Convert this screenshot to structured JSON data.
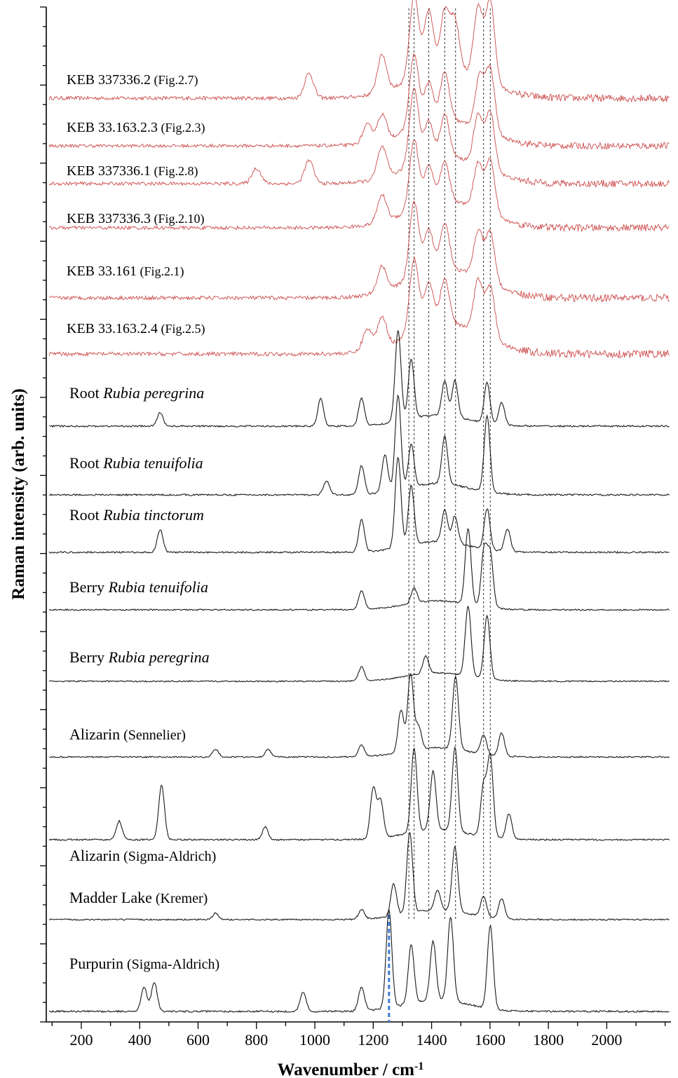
{
  "chart_data": {
    "type": "line",
    "title": "",
    "xlabel": "Wavenumber / cm",
    "xlabel_superscript": "-1",
    "ylabel": "Raman intensity (arb. units)",
    "xlim": [
      80,
      2220
    ],
    "xticks": [
      200,
      400,
      600,
      800,
      1000,
      1200,
      1400,
      1600,
      1800,
      2000
    ],
    "ytick_labels": "none",
    "grid": false,
    "legend": "none (each spectrum labelled at left)",
    "reference_lines_cm": [
      1322,
      1340,
      1390,
      1445,
      1482,
      1578,
      1601
    ],
    "highlight_line_cm": 1254,
    "colors": {
      "sample": "#cc4b4b",
      "reference": "#1a1a1a",
      "highlight": "#3a7bd5",
      "guide": "#333333"
    },
    "series": [
      {
        "name": "KEB 337336.2",
        "note": "(Fig.2.7)",
        "italic": "",
        "group": "sample",
        "peaks_cm": [
          [
            1340,
            1.0
          ],
          [
            1390,
            0.75
          ],
          [
            1445,
            0.7
          ],
          [
            1480,
            0.6
          ],
          [
            1560,
            0.85
          ],
          [
            1601,
            1.0
          ],
          [
            1230,
            0.45
          ],
          [
            980,
            0.3
          ]
        ]
      },
      {
        "name": "KEB 33.163.2.3",
        "note": "(Fig.2.3)",
        "italic": "",
        "group": "sample",
        "peaks_cm": [
          [
            1340,
            1.0
          ],
          [
            1390,
            0.55
          ],
          [
            1445,
            0.65
          ],
          [
            1565,
            0.7
          ],
          [
            1601,
            0.85
          ],
          [
            1230,
            0.35
          ],
          [
            1180,
            0.25
          ]
        ]
      },
      {
        "name": "KEB 337336.1",
        "note": "(Fig.2.8)",
        "italic": "",
        "group": "sample",
        "peaks_cm": [
          [
            1340,
            1.0
          ],
          [
            1390,
            0.5
          ],
          [
            1445,
            0.55
          ],
          [
            1560,
            0.65
          ],
          [
            1601,
            0.75
          ],
          [
            1230,
            0.4
          ],
          [
            980,
            0.3
          ],
          [
            800,
            0.2
          ]
        ]
      },
      {
        "name": "KEB 337336.3",
        "note": "(Fig.2.10)",
        "italic": "",
        "group": "sample",
        "peaks_cm": [
          [
            1340,
            0.9
          ],
          [
            1390,
            0.5
          ],
          [
            1445,
            0.5
          ],
          [
            1560,
            0.6
          ],
          [
            1601,
            0.7
          ],
          [
            1230,
            0.35
          ]
        ]
      },
      {
        "name": "KEB 33.161",
        "note": "(Fig.2.1)",
        "italic": "",
        "group": "sample",
        "peaks_cm": [
          [
            1340,
            0.9
          ],
          [
            1390,
            0.5
          ],
          [
            1445,
            0.55
          ],
          [
            1560,
            0.55
          ],
          [
            1601,
            0.6
          ],
          [
            1230,
            0.3
          ]
        ]
      },
      {
        "name": "KEB 33.163.2.4",
        "note": "(Fig.2.5)",
        "italic": "",
        "group": "sample",
        "peaks_cm": [
          [
            1340,
            0.85
          ],
          [
            1390,
            0.5
          ],
          [
            1445,
            0.5
          ],
          [
            1560,
            0.6
          ],
          [
            1601,
            0.6
          ],
          [
            1230,
            0.35
          ],
          [
            1180,
            0.25
          ]
        ]
      },
      {
        "name": "Root",
        "note": "",
        "italic": "Rubia peregrina",
        "group": "reference",
        "peaks_cm": [
          [
            1285,
            1.0
          ],
          [
            1330,
            0.65
          ],
          [
            1445,
            0.38
          ],
          [
            1480,
            0.4
          ],
          [
            1590,
            0.45
          ],
          [
            1640,
            0.25
          ],
          [
            1160,
            0.3
          ],
          [
            1020,
            0.3
          ],
          [
            470,
            0.15
          ]
        ]
      },
      {
        "name": "Root",
        "note": "",
        "italic": "Rubia tenuifolia",
        "group": "reference",
        "peaks_cm": [
          [
            1285,
            1.0
          ],
          [
            1330,
            0.45
          ],
          [
            1240,
            0.4
          ],
          [
            1445,
            0.5
          ],
          [
            1590,
            0.8
          ],
          [
            1160,
            0.3
          ],
          [
            1040,
            0.15
          ]
        ]
      },
      {
        "name": "Root",
        "note": "",
        "italic": "Rubia tinctorum",
        "group": "reference",
        "peaks_cm": [
          [
            1285,
            1.0
          ],
          [
            1330,
            0.65
          ],
          [
            1445,
            0.35
          ],
          [
            1480,
            0.3
          ],
          [
            1590,
            0.45
          ],
          [
            1660,
            0.25
          ],
          [
            1160,
            0.35
          ],
          [
            470,
            0.25
          ]
        ]
      },
      {
        "name": "Berry",
        "note": "",
        "italic": "Rubia tenuifolia",
        "group": "reference",
        "peaks_cm": [
          [
            1525,
            1.0
          ],
          [
            1580,
            0.75
          ],
          [
            1601,
            0.7
          ],
          [
            1160,
            0.25
          ],
          [
            1340,
            0.2
          ]
        ]
      },
      {
        "name": "Berry",
        "note": "",
        "italic": "Rubia peregrina",
        "group": "reference",
        "peaks_cm": [
          [
            1525,
            1.0
          ],
          [
            1590,
            0.9
          ],
          [
            1160,
            0.2
          ],
          [
            1380,
            0.25
          ]
        ]
      },
      {
        "name": "Alizarin",
        "note": "(Sennelier)",
        "italic": "",
        "group": "reference",
        "peaks_cm": [
          [
            1328,
            1.0
          ],
          [
            1295,
            0.55
          ],
          [
            1482,
            0.95
          ],
          [
            1355,
            0.3
          ],
          [
            1578,
            0.25
          ],
          [
            1640,
            0.3
          ],
          [
            1160,
            0.15
          ],
          [
            840,
            0.1
          ],
          [
            660,
            0.1
          ]
        ]
      },
      {
        "name": "Alizarin",
        "note": "(Sigma-Aldrich)",
        "italic": "",
        "group": "reference",
        "peaks_cm": [
          [
            1340,
            1.0
          ],
          [
            1200,
            0.6
          ],
          [
            1225,
            0.45
          ],
          [
            1405,
            0.7
          ],
          [
            1480,
            1.0
          ],
          [
            1578,
            0.6
          ],
          [
            1601,
            0.95
          ],
          [
            1665,
            0.3
          ],
          [
            475,
            0.65
          ],
          [
            330,
            0.22
          ],
          [
            830,
            0.15
          ]
        ]
      },
      {
        "name": "Madder Lake",
        "note": "(Kremer)",
        "italic": "",
        "group": "reference",
        "peaks_cm": [
          [
            1325,
            1.0
          ],
          [
            1480,
            0.8
          ],
          [
            1420,
            0.25
          ],
          [
            1270,
            0.4
          ],
          [
            1578,
            0.25
          ],
          [
            1640,
            0.25
          ],
          [
            1160,
            0.12
          ],
          [
            660,
            0.08
          ]
        ]
      },
      {
        "name": "Purpurin",
        "note": "(Sigma-Aldrich)",
        "italic": "",
        "group": "reference",
        "peaks_cm": [
          [
            1254,
            1.0
          ],
          [
            1330,
            0.6
          ],
          [
            1405,
            0.6
          ],
          [
            1465,
            0.85
          ],
          [
            1601,
            0.85
          ],
          [
            1160,
            0.25
          ],
          [
            450,
            0.3
          ],
          [
            415,
            0.25
          ],
          [
            960,
            0.2
          ]
        ]
      }
    ]
  }
}
